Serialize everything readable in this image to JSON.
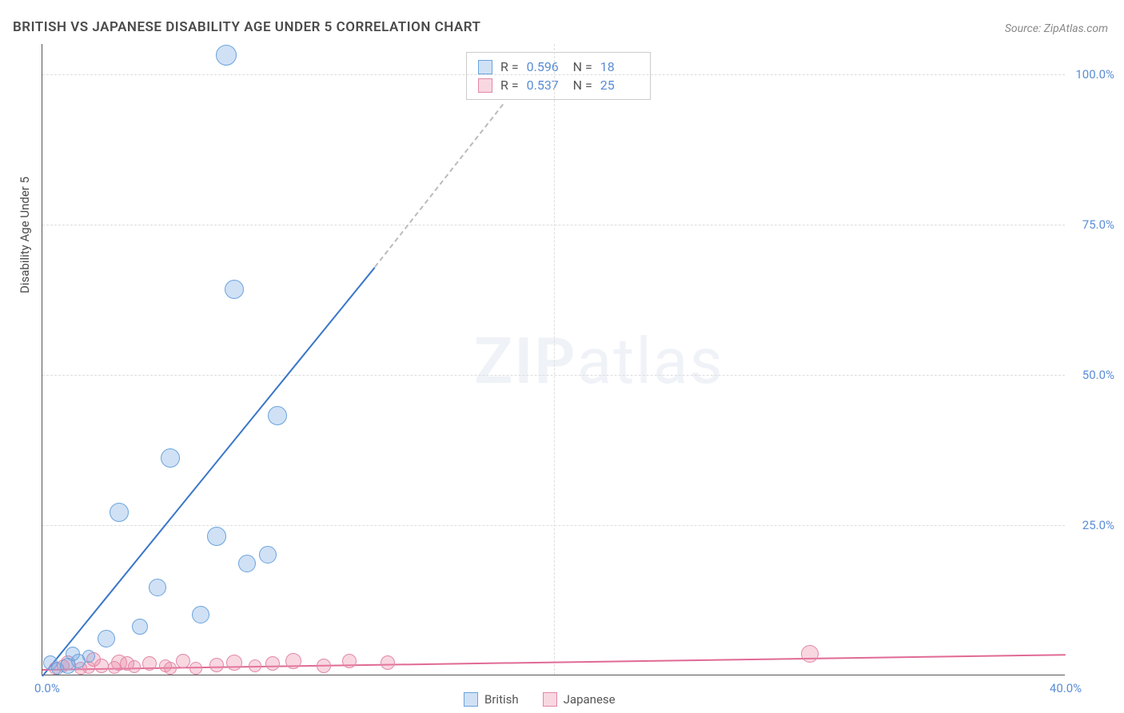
{
  "title": "BRITISH VS JAPANESE DISABILITY AGE UNDER 5 CORRELATION CHART",
  "source": "Source: ZipAtlas.com",
  "y_axis_title": "Disability Age Under 5",
  "watermark_zip": "ZIP",
  "watermark_atlas": "atlas",
  "chart": {
    "type": "scatter",
    "xlim": [
      0,
      40
    ],
    "ylim": [
      0,
      105
    ],
    "x_ticks": [
      0,
      40
    ],
    "x_tick_labels": [
      "0.0%",
      "40.0%"
    ],
    "y_ticks": [
      25,
      50,
      75,
      100
    ],
    "y_tick_labels": [
      "25.0%",
      "50.0%",
      "75.0%",
      "100.0%"
    ],
    "grid_color": "#dddddd",
    "background_color": "#ffffff",
    "axis_color": "#555555",
    "tick_label_color": "#5b8dd6"
  },
  "series": {
    "british": {
      "label": "British",
      "point_fill": "rgba(120,170,225,0.35)",
      "point_stroke": "#6aa3dd",
      "line_color": "#3a76c9",
      "R": "0.596",
      "N": "18",
      "points": [
        {
          "x": 0.3,
          "y": 2.0,
          "r": 9
        },
        {
          "x": 0.6,
          "y": 1.0,
          "r": 8
        },
        {
          "x": 1.0,
          "y": 1.5,
          "r": 10
        },
        {
          "x": 1.4,
          "y": 2.2,
          "r": 9
        },
        {
          "x": 1.8,
          "y": 3.0,
          "r": 8
        },
        {
          "x": 2.5,
          "y": 6.0,
          "r": 11
        },
        {
          "x": 3.0,
          "y": 27.0,
          "r": 12
        },
        {
          "x": 3.8,
          "y": 8.0,
          "r": 10
        },
        {
          "x": 4.5,
          "y": 14.5,
          "r": 11
        },
        {
          "x": 5.0,
          "y": 36.0,
          "r": 12
        },
        {
          "x": 6.2,
          "y": 10.0,
          "r": 11
        },
        {
          "x": 6.8,
          "y": 23.0,
          "r": 12
        },
        {
          "x": 7.2,
          "y": 103.0,
          "r": 13
        },
        {
          "x": 7.5,
          "y": 64.0,
          "r": 12
        },
        {
          "x": 8.0,
          "y": 18.5,
          "r": 11
        },
        {
          "x": 8.8,
          "y": 20.0,
          "r": 11
        },
        {
          "x": 9.2,
          "y": 43.0,
          "r": 12
        },
        {
          "x": 1.2,
          "y": 3.5,
          "r": 9
        }
      ],
      "trend": {
        "x1": 0,
        "y1": 0,
        "x2": 13,
        "y2": 68,
        "dashed_to_x": 18,
        "dashed_to_y": 95
      }
    },
    "japanese": {
      "label": "Japanese",
      "point_fill": "rgba(235,140,170,0.35)",
      "point_stroke": "#e288a8",
      "line_color": "#e06a95",
      "R": "0.537",
      "N": "25",
      "points": [
        {
          "x": 0.5,
          "y": 1.0,
          "r": 8
        },
        {
          "x": 1.0,
          "y": 2.0,
          "r": 9
        },
        {
          "x": 1.8,
          "y": 1.2,
          "r": 8
        },
        {
          "x": 2.3,
          "y": 1.5,
          "r": 9
        },
        {
          "x": 3.0,
          "y": 2.0,
          "r": 10
        },
        {
          "x": 3.6,
          "y": 1.3,
          "r": 8
        },
        {
          "x": 4.2,
          "y": 1.8,
          "r": 9
        },
        {
          "x": 4.8,
          "y": 1.5,
          "r": 8
        },
        {
          "x": 5.5,
          "y": 2.2,
          "r": 9
        },
        {
          "x": 6.0,
          "y": 1.0,
          "r": 8
        },
        {
          "x": 6.8,
          "y": 1.6,
          "r": 9
        },
        {
          "x": 7.5,
          "y": 2.0,
          "r": 10
        },
        {
          "x": 8.3,
          "y": 1.4,
          "r": 8
        },
        {
          "x": 9.0,
          "y": 1.8,
          "r": 9
        },
        {
          "x": 9.8,
          "y": 2.2,
          "r": 10
        },
        {
          "x": 11.0,
          "y": 1.5,
          "r": 9
        },
        {
          "x": 13.5,
          "y": 2.0,
          "r": 9
        },
        {
          "x": 30.0,
          "y": 3.5,
          "r": 11
        },
        {
          "x": 1.5,
          "y": 1.0,
          "r": 8
        },
        {
          "x": 2.0,
          "y": 2.5,
          "r": 9
        },
        {
          "x": 2.8,
          "y": 1.2,
          "r": 8
        },
        {
          "x": 3.3,
          "y": 1.8,
          "r": 9
        },
        {
          "x": 5.0,
          "y": 1.0,
          "r": 8
        },
        {
          "x": 12.0,
          "y": 2.3,
          "r": 9
        },
        {
          "x": 0.8,
          "y": 1.5,
          "r": 8
        }
      ],
      "trend": {
        "x1": 0,
        "y1": 1.0,
        "x2": 40,
        "y2": 3.5
      }
    }
  },
  "stats_labels": {
    "R": "R =",
    "N": "N ="
  },
  "legend": [
    {
      "key": "british",
      "label": "British"
    },
    {
      "key": "japanese",
      "label": "Japanese"
    }
  ]
}
